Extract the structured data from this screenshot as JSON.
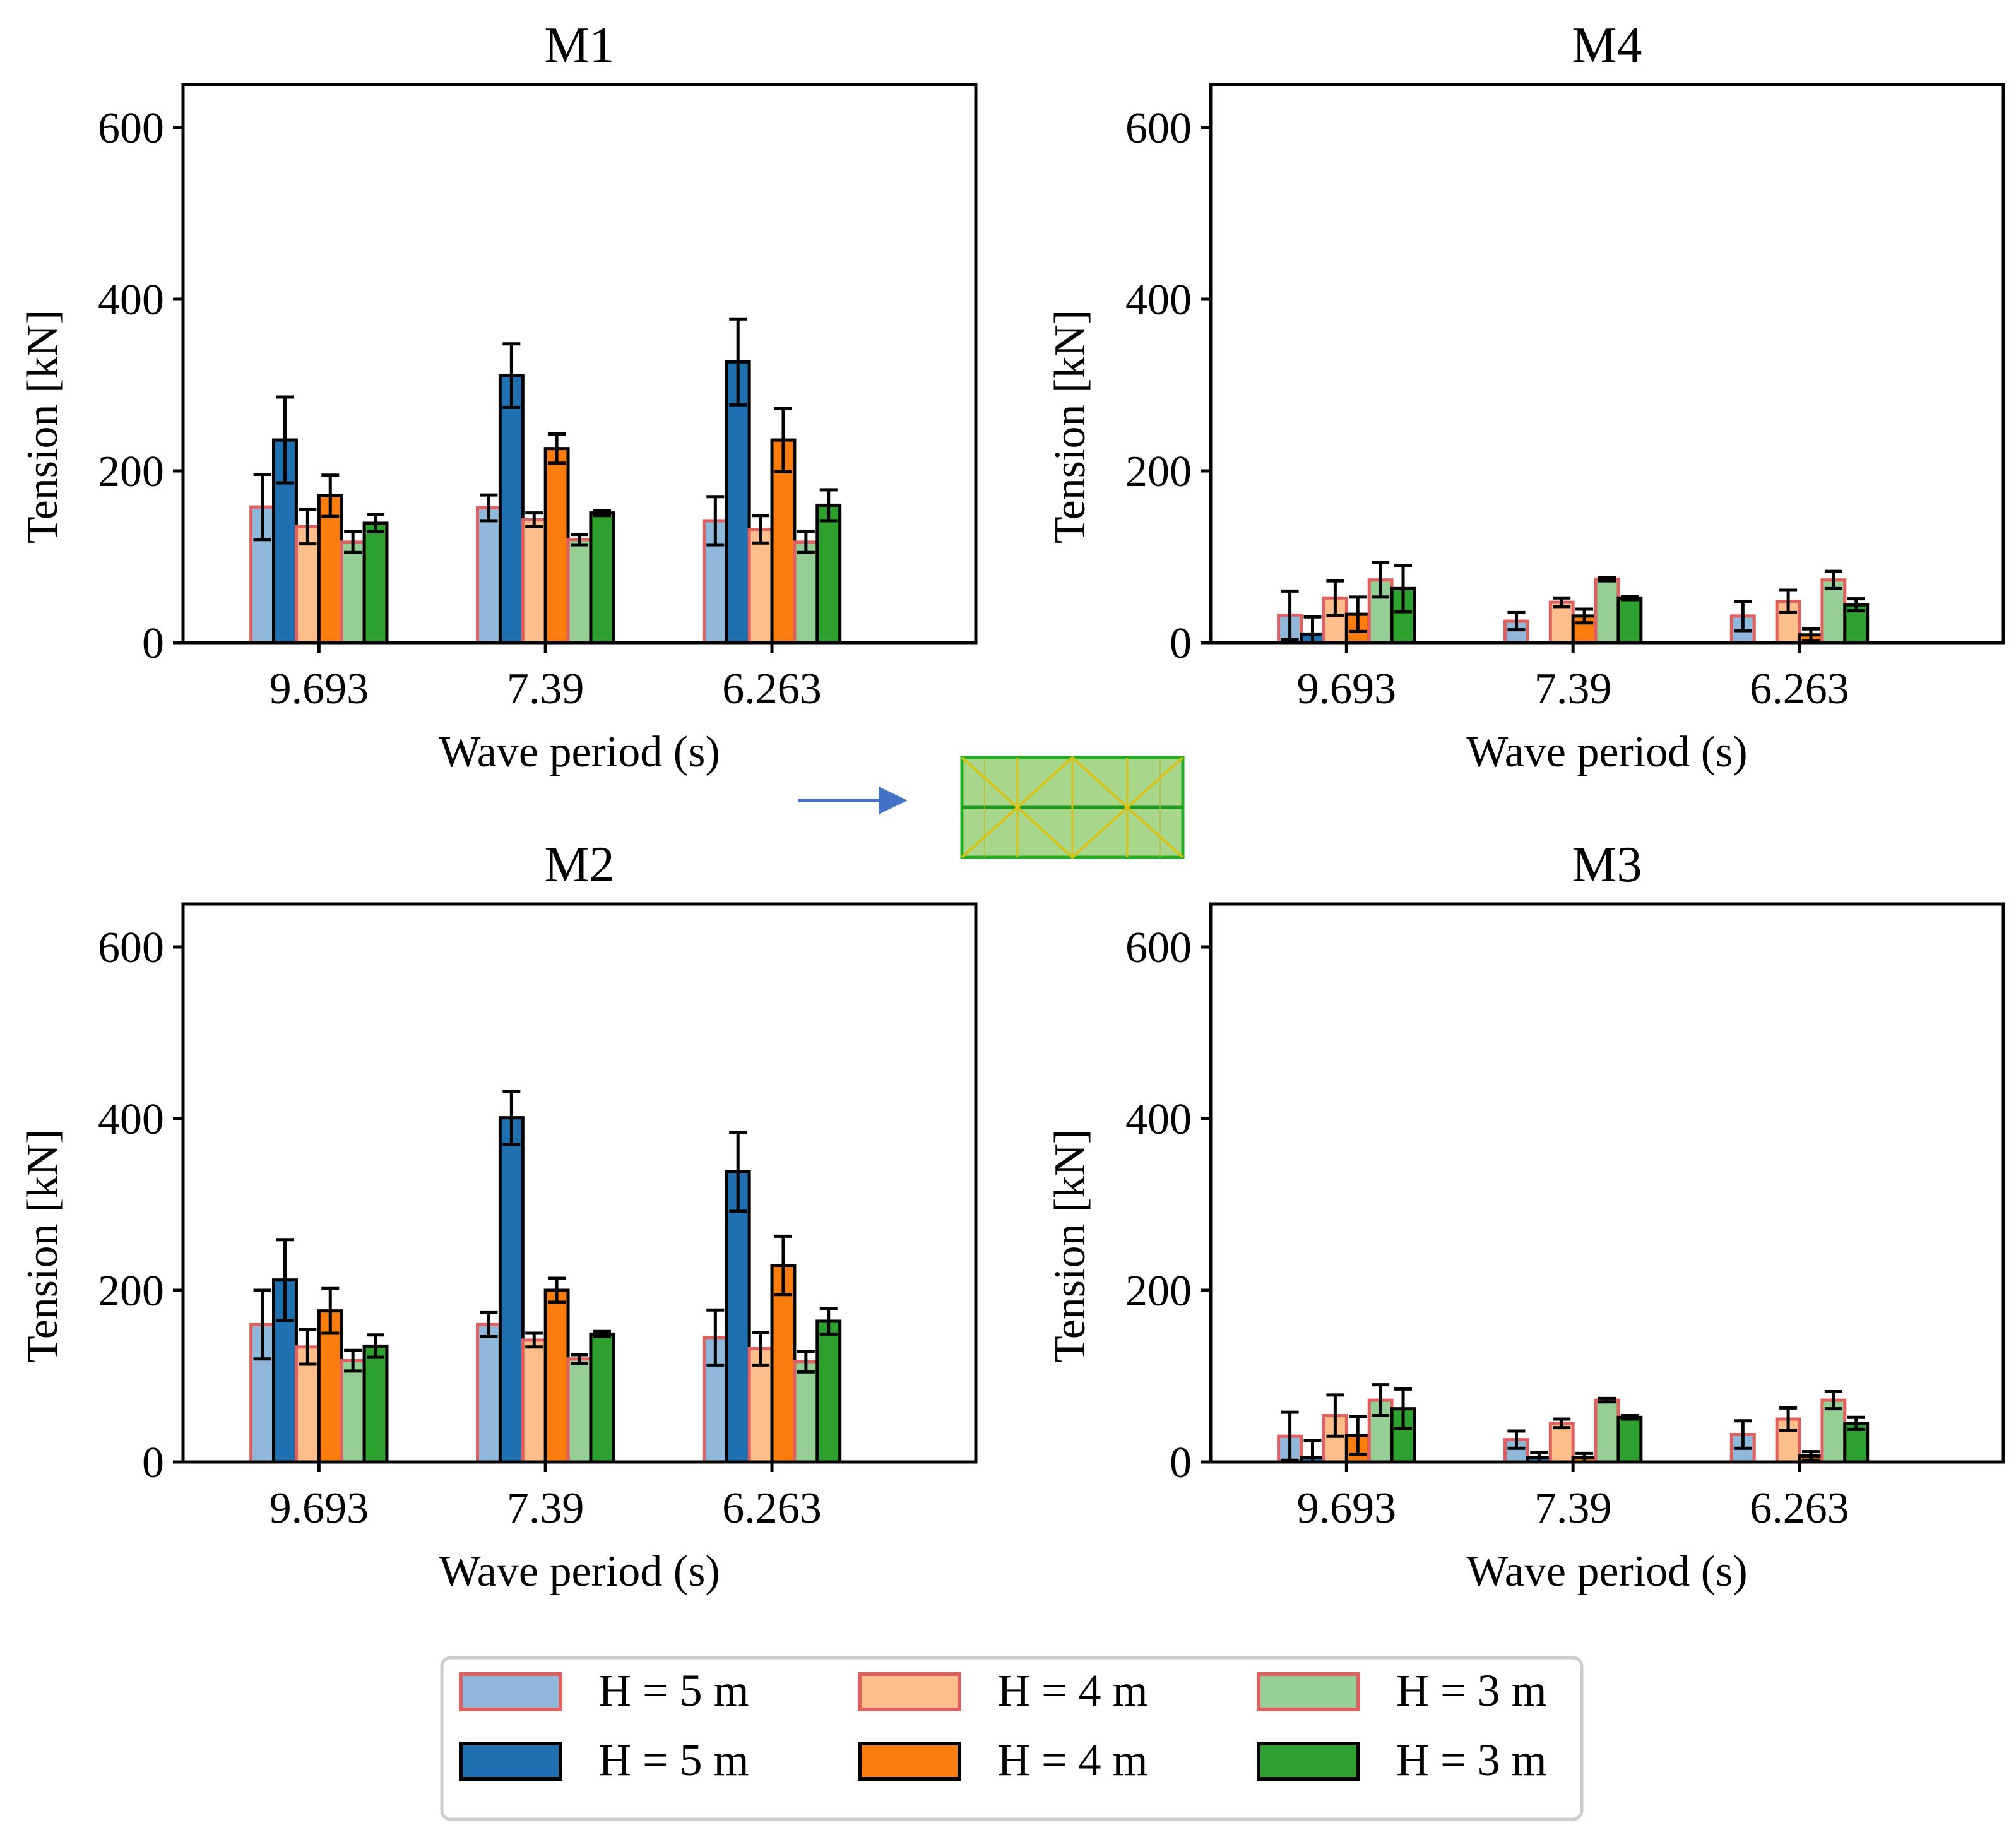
{
  "chart_data": [
    {
      "type": "bar",
      "title": "M1",
      "xlabel": "Wave period (s)",
      "ylabel": "Tension [kN]",
      "ylim": [
        0,
        650
      ],
      "yticks": [
        "0",
        "200",
        "400",
        "600"
      ],
      "categories": [
        "9.693",
        "7.39",
        "6.263"
      ],
      "series": [
        {
          "name": "H = 5 m",
          "style": "light",
          "values": [
            158,
            157,
            142
          ],
          "errors": [
            38,
            15,
            28
          ]
        },
        {
          "name": "H = 5 m",
          "style": "dark",
          "values": [
            236,
            311,
            327
          ],
          "errors": [
            50,
            37,
            50
          ]
        },
        {
          "name": "H = 4 m",
          "style": "light",
          "values": [
            135,
            143,
            132
          ],
          "errors": [
            20,
            8,
            16
          ]
        },
        {
          "name": "H = 4 m",
          "style": "dark",
          "values": [
            171,
            226,
            236
          ],
          "errors": [
            24,
            17,
            37
          ]
        },
        {
          "name": "H = 3 m",
          "style": "light",
          "values": [
            117,
            120,
            117
          ],
          "errors": [
            12,
            6,
            12
          ]
        },
        {
          "name": "H = 3 m",
          "style": "dark",
          "values": [
            139,
            151,
            160
          ],
          "errors": [
            10,
            3,
            18
          ]
        }
      ]
    },
    {
      "type": "bar",
      "title": "M4",
      "xlabel": "Wave period (s)",
      "ylabel": "Tension [kN]",
      "ylim": [
        0,
        650
      ],
      "yticks": [
        "0",
        "200",
        "400",
        "600"
      ],
      "categories": [
        "9.693",
        "7.39",
        "6.263"
      ],
      "series": [
        {
          "name": "H = 5 m",
          "style": "light",
          "values": [
            32,
            25,
            31
          ],
          "errors": [
            28,
            10,
            17
          ]
        },
        {
          "name": "H = 5 m",
          "style": "dark",
          "values": [
            10,
            0,
            0
          ],
          "errors": [
            20,
            0,
            0
          ]
        },
        {
          "name": "H = 4 m",
          "style": "light",
          "values": [
            52,
            47,
            48
          ],
          "errors": [
            20,
            5,
            13
          ]
        },
        {
          "name": "H = 4 m",
          "style": "dark",
          "values": [
            33,
            31,
            9
          ],
          "errors": [
            20,
            8,
            7
          ]
        },
        {
          "name": "H = 3 m",
          "style": "light",
          "values": [
            73,
            74,
            73
          ],
          "errors": [
            20,
            2,
            10
          ]
        },
        {
          "name": "H = 3 m",
          "style": "dark",
          "values": [
            63,
            52,
            44
          ],
          "errors": [
            27,
            2,
            7
          ]
        }
      ]
    },
    {
      "type": "bar",
      "title": "M2",
      "xlabel": "Wave period (s)",
      "ylabel": "Tension [kN]",
      "ylim": [
        0,
        650
      ],
      "yticks": [
        "0",
        "200",
        "400",
        "600"
      ],
      "categories": [
        "9.693",
        "7.39",
        "6.263"
      ],
      "series": [
        {
          "name": "H = 5 m",
          "style": "light",
          "values": [
            160,
            160,
            145
          ],
          "errors": [
            40,
            14,
            32
          ]
        },
        {
          "name": "H = 5 m",
          "style": "dark",
          "values": [
            212,
            401,
            338
          ],
          "errors": [
            47,
            31,
            46
          ]
        },
        {
          "name": "H = 4 m",
          "style": "light",
          "values": [
            134,
            142,
            132
          ],
          "errors": [
            20,
            8,
            19
          ]
        },
        {
          "name": "H = 4 m",
          "style": "dark",
          "values": [
            176,
            200,
            229
          ],
          "errors": [
            26,
            14,
            34
          ]
        },
        {
          "name": "H = 3 m",
          "style": "light",
          "values": [
            118,
            120,
            117
          ],
          "errors": [
            12,
            5,
            12
          ]
        },
        {
          "name": "H = 3 m",
          "style": "dark",
          "values": [
            135,
            149,
            164
          ],
          "errors": [
            13,
            3,
            15
          ]
        }
      ]
    },
    {
      "type": "bar",
      "title": "M3",
      "xlabel": "Wave period (s)",
      "ylabel": "Tension [kN]",
      "ylim": [
        0,
        650
      ],
      "yticks": [
        "0",
        "200",
        "400",
        "600"
      ],
      "categories": [
        "9.693",
        "7.39",
        "6.263"
      ],
      "series": [
        {
          "name": "H = 5 m",
          "style": "light",
          "values": [
            30,
            26,
            32
          ],
          "errors": [
            28,
            10,
            16
          ]
        },
        {
          "name": "H = 5 m",
          "style": "dark",
          "values": [
            5,
            5,
            0
          ],
          "errors": [
            20,
            6,
            0
          ]
        },
        {
          "name": "H = 4 m",
          "style": "light",
          "values": [
            54,
            45,
            50
          ],
          "errors": [
            24,
            5,
            13
          ]
        },
        {
          "name": "H = 4 m",
          "style": "dark",
          "values": [
            31,
            5,
            7
          ],
          "errors": [
            22,
            5,
            5
          ]
        },
        {
          "name": "H = 3 m",
          "style": "light",
          "values": [
            72,
            72,
            72
          ],
          "errors": [
            18,
            2,
            10
          ]
        },
        {
          "name": "H = 3 m",
          "style": "dark",
          "values": [
            62,
            52,
            45
          ],
          "errors": [
            23,
            2,
            7
          ]
        }
      ]
    }
  ],
  "legend": {
    "items": [
      {
        "label": "H = 5 m",
        "style": "light",
        "color": "#8fb8da"
      },
      {
        "label": "H = 4 m",
        "style": "light",
        "color": "#ffbe8a"
      },
      {
        "label": "H = 3 m",
        "style": "light",
        "color": "#96cf96"
      },
      {
        "label": "H = 5 m",
        "style": "dark",
        "color": "#1f70b0"
      },
      {
        "label": "H = 4 m",
        "style": "dark",
        "color": "#fa7d0e"
      },
      {
        "label": "H = 3 m",
        "style": "dark",
        "color": "#2ea02e"
      }
    ]
  },
  "colors": {
    "light": [
      "#8fb8da",
      "#ffbe8a",
      "#96cf96"
    ],
    "dark": [
      "#1f70b0",
      "#fa7d0e",
      "#2ea02e"
    ],
    "light_edge": "#e06060",
    "dark_edge": "#000000",
    "arrow": "#4472c4",
    "schematic_fill": "#9ad07a",
    "schematic_line": "#1aa01a",
    "schematic_diag": "#d6c21a"
  },
  "schematic": {
    "icon": "mooring-layout-icon",
    "arrow_icon": "wave-direction-arrow-icon"
  }
}
